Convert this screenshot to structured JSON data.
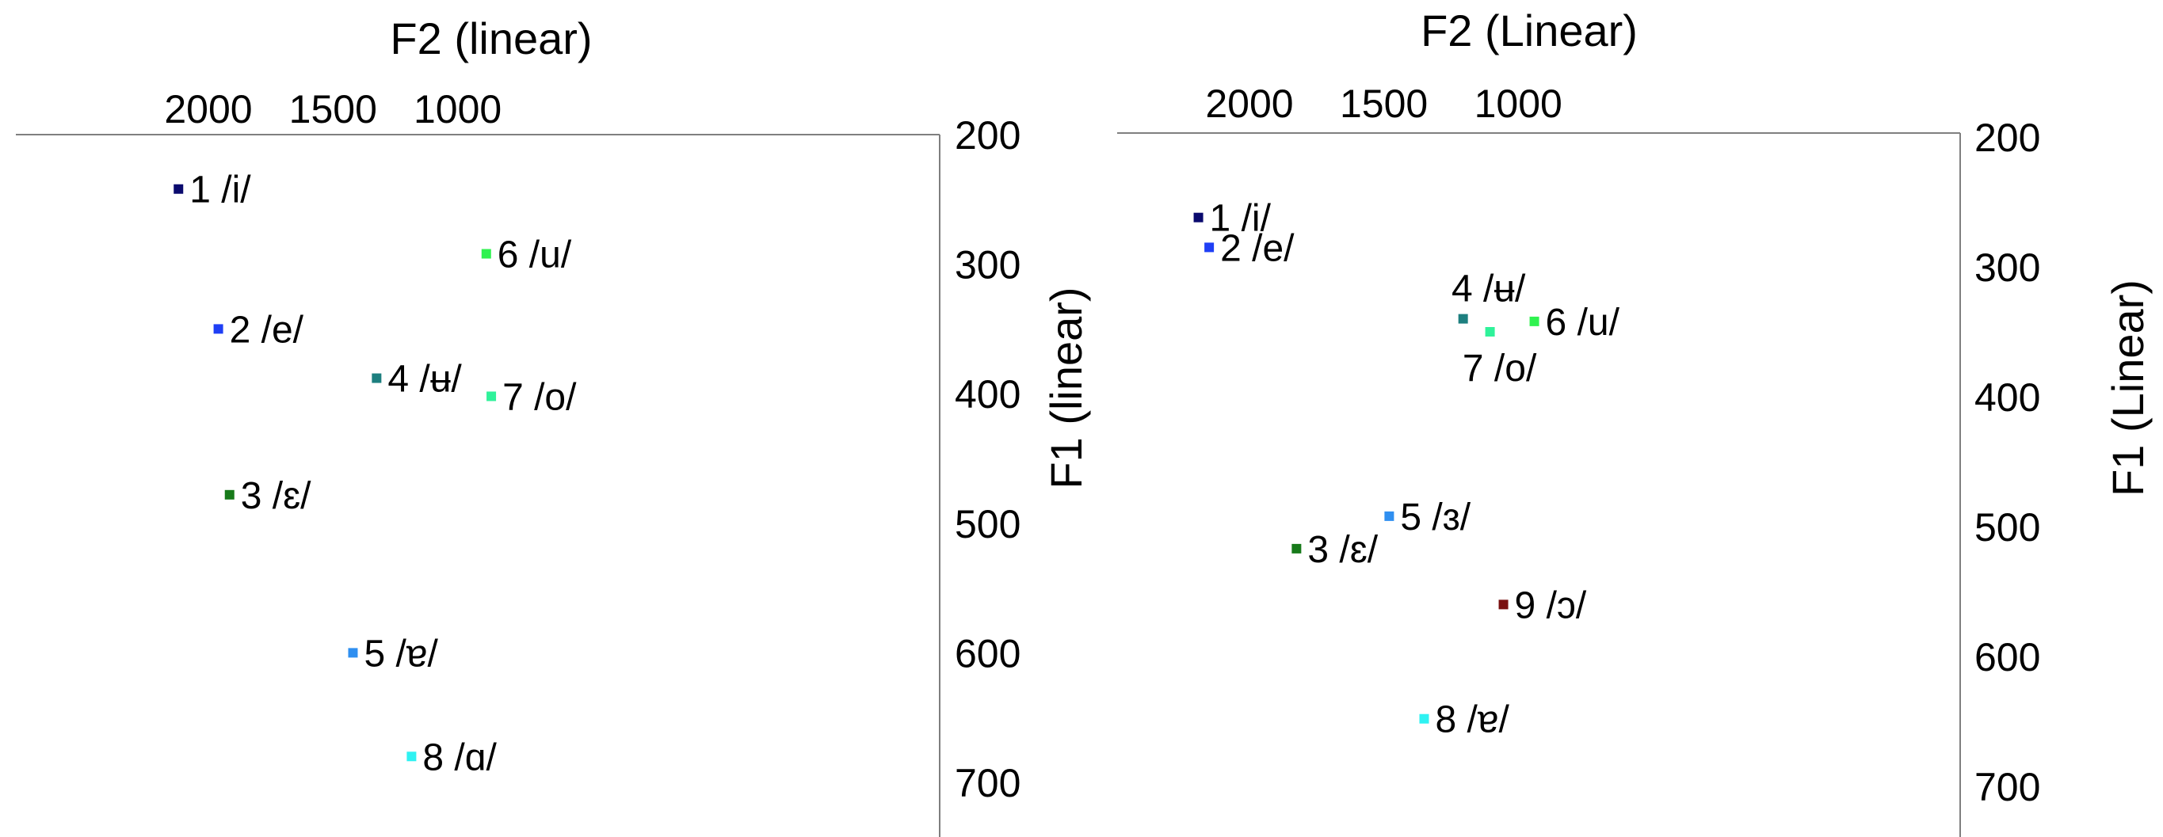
{
  "chart_data": [
    {
      "type": "scatter",
      "x_axis": {
        "label": "F2 (linear)",
        "range": [
          2250,
          650
        ],
        "reversed": true,
        "position": "top",
        "tick_values": [
          2000,
          1500,
          1000
        ],
        "tick_labels": [
          "2000",
          "1500",
          "1000"
        ]
      },
      "y_axis": {
        "label": "F1 (linear)",
        "range": [
          200,
          750
        ],
        "reversed": true,
        "position": "right",
        "tick_values": [
          200,
          300,
          400,
          500,
          600,
          700
        ],
        "tick_labels": [
          "200",
          "300",
          "400",
          "500",
          "600",
          "700"
        ]
      },
      "grid": false,
      "legend": false,
      "points": [
        {
          "label": "1 /i/",
          "f2": 2120,
          "f1": 242,
          "color": "#0a0a6e"
        },
        {
          "label": "2 /e/",
          "f2": 1960,
          "f1": 350,
          "color": "#1f3ff5"
        },
        {
          "label": "3 /ɛ/",
          "f2": 1915,
          "f1": 478,
          "color": "#177a1a"
        },
        {
          "label": "4 /ʉ/",
          "f2": 1325,
          "f1": 388,
          "color": "#1d7f7f"
        },
        {
          "label": "5 /ɐ/",
          "f2": 1420,
          "f1": 600,
          "color": "#2f8ff0"
        },
        {
          "label": "6 /u/",
          "f2": 885,
          "f1": 292,
          "color": "#2ff24f"
        },
        {
          "label": "7 /o/",
          "f2": 865,
          "f1": 402,
          "color": "#2ff29a"
        },
        {
          "label": "8 /ɑ/",
          "f2": 1185,
          "f1": 680,
          "color": "#2ff2f2"
        }
      ]
    },
    {
      "type": "scatter",
      "x_axis": {
        "label": "F2 (Linear)",
        "range": [
          2250,
          650
        ],
        "reversed": true,
        "position": "top",
        "tick_values": [
          2000,
          1500,
          1000
        ],
        "tick_labels": [
          "2000",
          "1500",
          "1000"
        ]
      },
      "y_axis": {
        "label": "F1 (Linear)",
        "range": [
          200,
          750
        ],
        "reversed": true,
        "position": "right",
        "tick_values": [
          200,
          300,
          400,
          500,
          600,
          700
        ],
        "tick_labels": [
          "200",
          "300",
          "400",
          "500",
          "600",
          "700"
        ]
      },
      "grid": false,
      "legend": false,
      "points": [
        {
          "label": "1 /i/",
          "f2": 2190,
          "f1": 262,
          "color": "#0a0a6e"
        },
        {
          "label": "2 /e/",
          "f2": 2150,
          "f1": 285,
          "color": "#1f3ff5"
        },
        {
          "label": "3 /ɛ/",
          "f2": 1825,
          "f1": 517,
          "color": "#177a1a"
        },
        {
          "label": "4 /ʉ/",
          "f2": 1205,
          "f1": 340,
          "color": "#1d7f7f",
          "label_position": "above"
        },
        {
          "label": "5 /ɜ/",
          "f2": 1480,
          "f1": 492,
          "color": "#2f8ff0"
        },
        {
          "label": "6 /u/",
          "f2": 940,
          "f1": 342,
          "color": "#2ff24f"
        },
        {
          "label": "7 /o/",
          "f2": 1105,
          "f1": 350,
          "color": "#2ff29a",
          "label_position": "below"
        },
        {
          "label": "8 /ɐ/",
          "f2": 1350,
          "f1": 648,
          "color": "#2ff2f2"
        },
        {
          "label": "9 /ɔ/",
          "f2": 1055,
          "f1": 560,
          "color": "#7a1010"
        }
      ]
    }
  ]
}
